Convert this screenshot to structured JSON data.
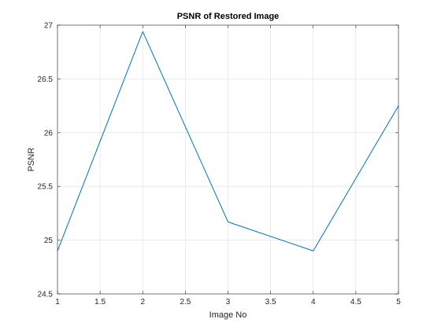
{
  "chart_data": {
    "type": "line",
    "title": "PSNR of Restored Image",
    "xlabel": "Image No",
    "ylabel": "PSNR",
    "xlim": [
      1,
      5
    ],
    "ylim": [
      24.5,
      27
    ],
    "grid": true,
    "legend": "none",
    "x_ticks": [
      1,
      1.5,
      2,
      2.5,
      3,
      3.5,
      4,
      4.5,
      5
    ],
    "x_tick_labels": [
      "1",
      "1.5",
      "2",
      "2.5",
      "3",
      "3.5",
      "4",
      "4.5",
      "5"
    ],
    "y_ticks": [
      24.5,
      25,
      25.5,
      26,
      26.5,
      27
    ],
    "y_tick_labels": [
      "24.5",
      "25",
      "25.5",
      "26",
      "26.5",
      "27"
    ],
    "series": [
      {
        "color": "#0072bd",
        "x": [
          1,
          2,
          3,
          4,
          5
        ],
        "y": [
          24.9,
          26.94,
          25.17,
          24.9,
          26.25
        ]
      }
    ]
  }
}
